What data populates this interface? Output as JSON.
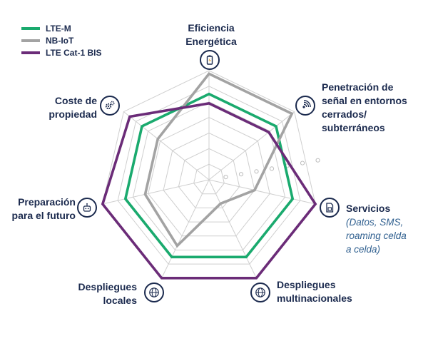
{
  "colors": {
    "lte_m": "#1aaa6e",
    "nb_iot": "#a3a3a3",
    "lte_cat1_bis": "#6b2c78",
    "grid": "#cfcfcf",
    "navy": "#1b2a4e",
    "sub": "#2f5f8f"
  },
  "legend": [
    {
      "label": "LTE-M",
      "color": "#1aaa6e"
    },
    {
      "label": "NB-IoT",
      "color": "#a3a3a3"
    },
    {
      "label": "LTE Cat-1 BIS",
      "color": "#6b2c78"
    }
  ],
  "axes": [
    {
      "line1": "Eficiencia",
      "line2": "Energética",
      "icon": "battery-icon"
    },
    {
      "line1": "Penetración de",
      "line2": "señal en entornos",
      "line3": "cerrados/",
      "line4": "subterráneos",
      "icon": "signal-icon"
    },
    {
      "line1": "Servicios",
      "sub1": "(Datos, SMS,",
      "sub2": "roaming celda",
      "sub3": "a celda)",
      "icon": "sim-card-icon"
    },
    {
      "line1": "Despliegues",
      "line2": "multinacionales",
      "icon": "globe-network-icon"
    },
    {
      "line1": "Despliegues",
      "line2": "locales",
      "icon": "globe-network-icon"
    },
    {
      "line1": "Preparación",
      "line2": "para el futuro",
      "icon": "robot-icon"
    },
    {
      "line1": "Coste de",
      "line2": "propiedad",
      "icon": "gears-icon"
    }
  ],
  "chart_data": {
    "type": "radar",
    "categories": [
      "Eficiencia Energética",
      "Penetración de señal en entornos cerrados/subterráneos",
      "Servicios (Datos, SMS, roaming celda a celda)",
      "Despliegues multinacionales",
      "Despliegues locales",
      "Preparación para el futuro",
      "Coste de propiedad"
    ],
    "levels": 7,
    "max": 7,
    "series": [
      {
        "name": "LTE-M",
        "color": "#1aaa6e",
        "values": [
          5.5,
          5.5,
          5.5,
          5.5,
          5.5,
          5.5,
          5.5
        ]
      },
      {
        "name": "NB-IoT",
        "color": "#a3a3a3",
        "values": [
          6.8,
          6.8,
          3.0,
          1.7,
          4.7,
          4.2,
          4.2
        ]
      },
      {
        "name": "LTE Cat-1 BIS",
        "color": "#6b2c78",
        "values": [
          4.9,
          4.9,
          7.0,
          7.0,
          7.0,
          7.0,
          6.5
        ]
      }
    ],
    "grid": true,
    "legend_position": "top-left"
  }
}
